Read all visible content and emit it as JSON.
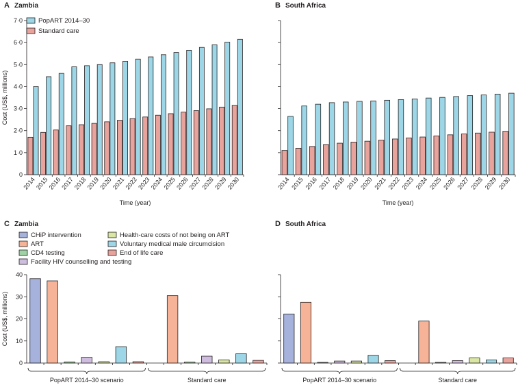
{
  "colors": {
    "popart": "#9dd6e6",
    "standard": "#e8a39d",
    "chip": "#a6b2db",
    "art": "#f7b398",
    "cd4": "#9fd2a4",
    "hct": "#cfbde0",
    "not_on_art": "#d9e6a4",
    "vmmc": "#9dd6e6",
    "eol": "#e8a39d"
  },
  "panels": {
    "A": {
      "letter": "A",
      "country": "Zambia"
    },
    "B": {
      "letter": "B",
      "country": "South Africa"
    },
    "C": {
      "letter": "C",
      "country": "Zambia"
    },
    "D": {
      "letter": "D",
      "country": "South Africa"
    }
  },
  "legend_top": [
    {
      "label": "PopART 2014–30",
      "color_key": "popart"
    },
    {
      "label": "Standard care",
      "color_key": "standard"
    }
  ],
  "legend_bottom": [
    {
      "label": "CHiP intervention",
      "color_key": "chip"
    },
    {
      "label": "ART",
      "color_key": "art"
    },
    {
      "label": "CD4 testing",
      "color_key": "cd4"
    },
    {
      "label": "Facility HIV counselling and testing",
      "color_key": "hct"
    },
    {
      "label": "Health-care costs of not being on ART",
      "color_key": "not_on_art"
    },
    {
      "label": "Voluntary medical male circumcision",
      "color_key": "vmmc"
    },
    {
      "label": "End of life care",
      "color_key": "eol"
    }
  ],
  "chart_data": [
    {
      "id": "A",
      "type": "bar",
      "title": "Zambia",
      "categories": [
        "2014",
        "2015",
        "2016",
        "2017",
        "2018",
        "2019",
        "2020",
        "2021",
        "2022",
        "2023",
        "2024",
        "2025",
        "2026",
        "2027",
        "2028",
        "2029",
        "2030"
      ],
      "series": [
        {
          "name": "PopART 2014–30",
          "color_key": "popart",
          "values": [
            4.0,
            4.45,
            4.6,
            4.9,
            4.95,
            5.0,
            5.08,
            5.15,
            5.25,
            5.35,
            5.45,
            5.55,
            5.65,
            5.78,
            5.9,
            6.02,
            6.15
          ]
        },
        {
          "name": "Standard care",
          "color_key": "standard",
          "values": [
            1.7,
            1.92,
            2.03,
            2.22,
            2.27,
            2.33,
            2.4,
            2.47,
            2.55,
            2.62,
            2.7,
            2.77,
            2.84,
            2.91,
            2.99,
            3.07,
            3.15
          ]
        }
      ],
      "xlabel": "Time (year)",
      "ylabel": "Cost (US$, millions)",
      "ylim": [
        0,
        7
      ],
      "yticks": [
        "0",
        "1·0",
        "2·0",
        "3·0",
        "4·0",
        "5·0",
        "6·0",
        "7·0"
      ]
    },
    {
      "id": "B",
      "type": "bar",
      "title": "South Africa",
      "categories": [
        "2014",
        "2015",
        "2016",
        "2017",
        "2018",
        "2019",
        "2020",
        "2021",
        "2022",
        "2023",
        "2024",
        "2025",
        "2026",
        "2027",
        "2028",
        "2029",
        "2030"
      ],
      "series": [
        {
          "name": "PopART 2014–30",
          "color_key": "popart",
          "values": [
            2.65,
            3.12,
            3.2,
            3.27,
            3.3,
            3.33,
            3.35,
            3.38,
            3.41,
            3.44,
            3.48,
            3.51,
            3.55,
            3.59,
            3.62,
            3.66,
            3.7
          ]
        },
        {
          "name": "Standard care",
          "color_key": "standard",
          "values": [
            1.1,
            1.2,
            1.28,
            1.37,
            1.43,
            1.48,
            1.52,
            1.57,
            1.62,
            1.67,
            1.71,
            1.76,
            1.81,
            1.85,
            1.89,
            1.93,
            1.97
          ]
        }
      ],
      "xlabel": "Time (year)",
      "ylabel": "",
      "ylim": [
        0,
        7
      ]
    },
    {
      "id": "C",
      "type": "bar",
      "title": "Zambia",
      "groups": [
        "PopART 2014–30 scenario",
        "Standard care"
      ],
      "components": [
        "chip",
        "art",
        "cd4",
        "hct",
        "not_on_art",
        "vmmc",
        "eol"
      ],
      "values": [
        [
          38.2,
          37.2,
          0.5,
          2.6,
          0.6,
          7.4,
          0.6
        ],
        [
          0,
          30.5,
          0.4,
          3.1,
          1.4,
          4.2,
          1.2
        ]
      ],
      "ylabel": "Cost (US$, millions)",
      "ylim": [
        0,
        40
      ],
      "yticks": [
        "0",
        "10",
        "20",
        "30",
        "40"
      ]
    },
    {
      "id": "D",
      "type": "bar",
      "title": "South Africa",
      "groups": [
        "PopART 2014–30 scenario",
        "Standard care"
      ],
      "components": [
        "chip",
        "art",
        "cd4",
        "hct",
        "not_on_art",
        "vmmc",
        "eol"
      ],
      "values": [
        [
          22.2,
          27.5,
          0.3,
          0.9,
          0.9,
          3.5,
          1.1
        ],
        [
          0,
          19.0,
          0.3,
          1.1,
          2.3,
          1.4,
          2.3
        ]
      ],
      "ylabel": "",
      "ylim": [
        0,
        40
      ]
    }
  ]
}
